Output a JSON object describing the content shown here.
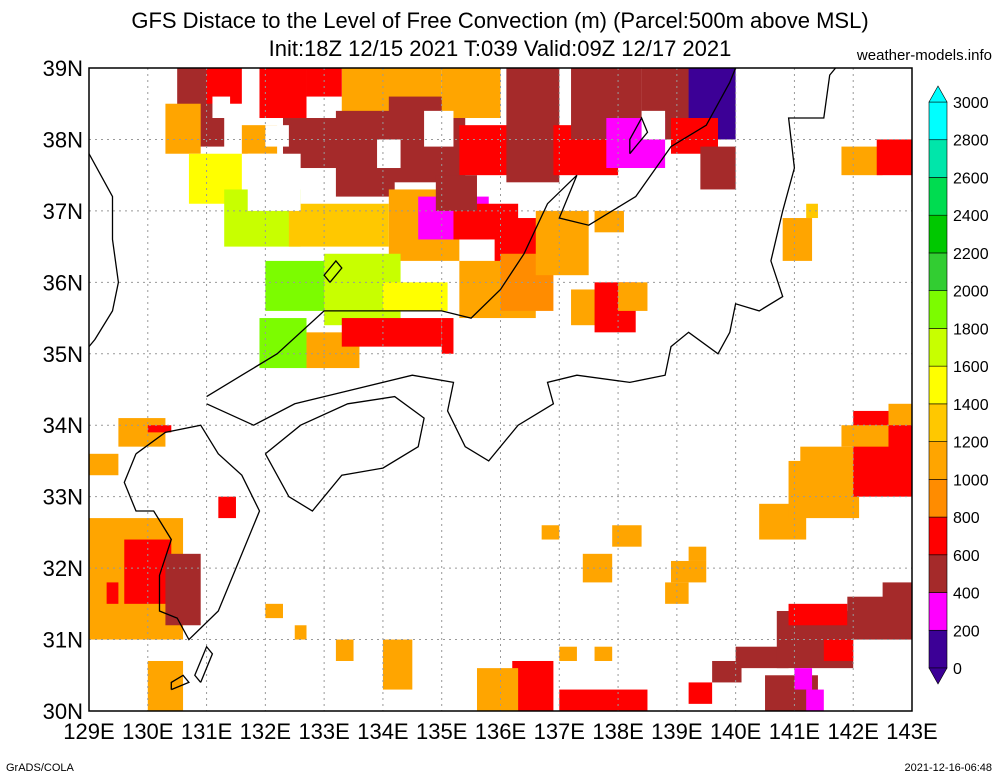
{
  "title_line1": "GFS Distace to the Level of Free Convection (m) (Parcel:500m above MSL)",
  "title_line2": "Init:18Z 12/15 2021 T:039 Valid:09Z 12/17 2021",
  "site": "weather-models.info",
  "footer_left": "GrADS/COLA",
  "footer_right": "2021-12-16-06:48",
  "map": {
    "lon_range": [
      129,
      143
    ],
    "lat_range": [
      30,
      39
    ],
    "lon_labels": [
      "129E",
      "130E",
      "131E",
      "132E",
      "133E",
      "134E",
      "135E",
      "136E",
      "137E",
      "138E",
      "139E",
      "140E",
      "141E",
      "142E",
      "143E"
    ],
    "lat_labels": [
      "30N",
      "31N",
      "32N",
      "33N",
      "34N",
      "35N",
      "36N",
      "37N",
      "38N",
      "39N"
    ]
  },
  "colorbar": {
    "labels": [
      "0",
      "200",
      "400",
      "600",
      "800",
      "1000",
      "1200",
      "1400",
      "1600",
      "1800",
      "2000",
      "2200",
      "2400",
      "2600",
      "2800",
      "3000"
    ],
    "colors": [
      "#3c0096",
      "#ff00ff",
      "#a52a2a",
      "#ff0000",
      "#ff8c00",
      "#ffa500",
      "#ffc800",
      "#ffff00",
      "#c8ff00",
      "#7cfc00",
      "#32cd32",
      "#00c800",
      "#00dc50",
      "#00e6aa",
      "#00ffff"
    ]
  }
}
